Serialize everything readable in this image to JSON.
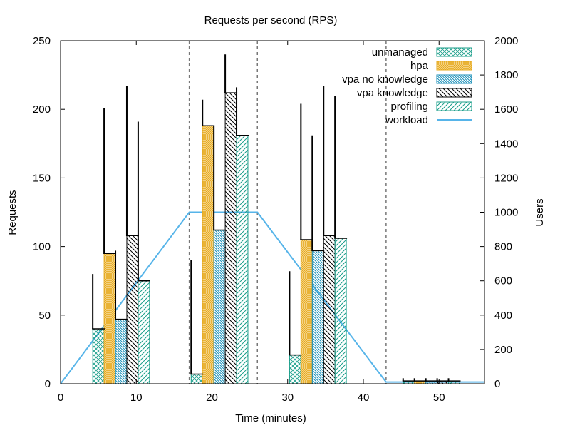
{
  "chart_data": {
    "type": "bar",
    "title": "Requests per second (RPS)",
    "xlabel": "Time (minutes)",
    "ylabel": "Requests",
    "y2label": "Users",
    "xlim": [
      0,
      56
    ],
    "ylim": [
      0,
      250
    ],
    "y2lim": [
      0,
      2000
    ],
    "xticks": [
      0,
      10,
      20,
      30,
      40,
      50
    ],
    "yticks": [
      0,
      50,
      100,
      150,
      200,
      250
    ],
    "y2ticks": [
      0,
      200,
      400,
      600,
      800,
      1000,
      1200,
      1400,
      1600,
      1800,
      2000
    ],
    "legend_position": "top-right",
    "grid": false,
    "phase_boundaries": [
      17,
      26,
      43
    ],
    "bar_width": 1.5,
    "series": [
      {
        "name": "unmanaged",
        "color": "#1a9e8a",
        "pattern": "crosshatch",
        "x": [
          5.0,
          18.0,
          31.0,
          46.0
        ],
        "values": [
          40,
          7,
          21,
          2
        ],
        "error_top": [
          80,
          90,
          82,
          4
        ]
      },
      {
        "name": "hpa",
        "color": "#e6a91c",
        "pattern": "dense-crosshatch",
        "x": [
          6.5,
          19.5,
          32.5,
          47.5
        ],
        "values": [
          95,
          188,
          105,
          2
        ],
        "error_top": [
          201,
          207,
          204,
          4
        ]
      },
      {
        "name": "vpa no knowledge",
        "color": "#1a8fb8",
        "pattern": "back-diagonal-dense",
        "x": [
          8.0,
          21.0,
          34.0,
          49.0
        ],
        "values": [
          47,
          112,
          97,
          2
        ],
        "error_top": [
          97,
          188,
          181,
          4
        ]
      },
      {
        "name": "vpa knowledge",
        "color": "#000000",
        "pattern": "back-diagonal",
        "x": [
          9.5,
          22.5,
          35.5,
          50.5
        ],
        "values": [
          108,
          212,
          108,
          2
        ],
        "error_top": [
          217,
          240,
          217,
          4
        ]
      },
      {
        "name": "profiling",
        "color": "#1a9e8a",
        "pattern": "forward-diagonal",
        "x": [
          11.0,
          24.0,
          37.0,
          52.0
        ],
        "values": [
          75,
          181,
          106,
          2
        ],
        "error_top": [
          191,
          216,
          210,
          4
        ]
      }
    ],
    "workload": {
      "name": "workload",
      "axis": "y2",
      "color": "#56b4e9",
      "x": [
        0,
        17,
        26,
        43,
        56
      ],
      "y": [
        0,
        1000,
        1000,
        10,
        10
      ]
    }
  }
}
